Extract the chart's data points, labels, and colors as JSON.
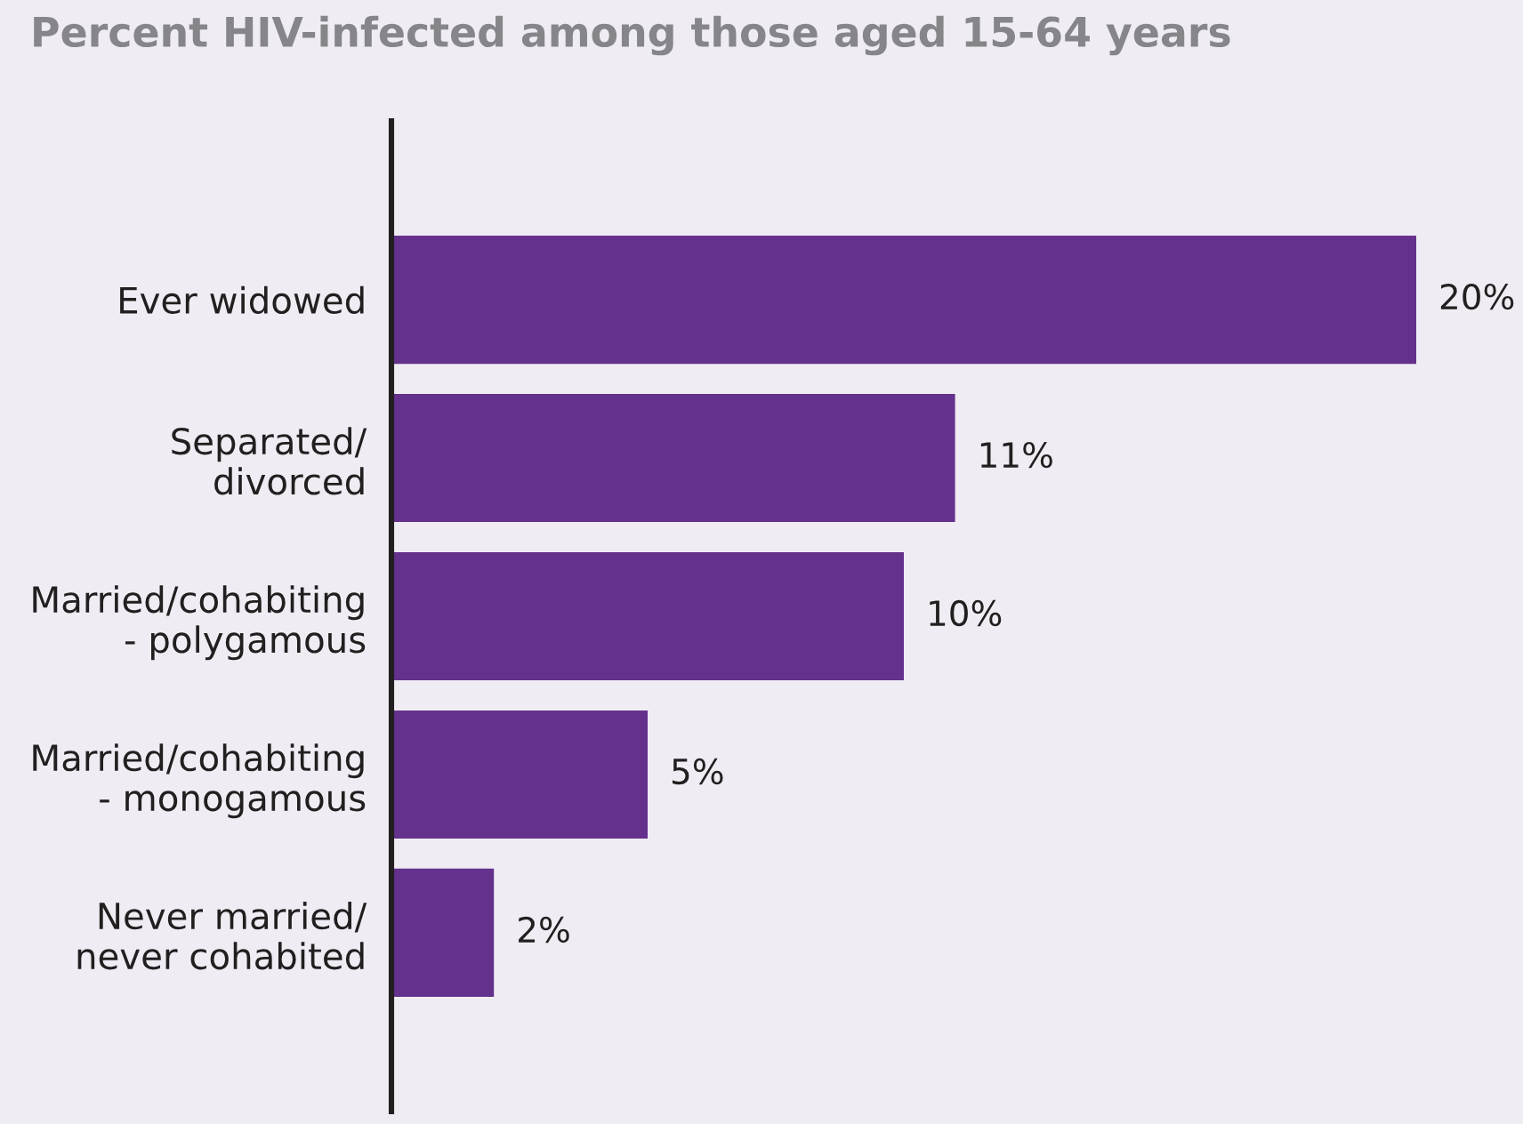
{
  "chart_data": {
    "type": "bar",
    "orientation": "horizontal",
    "title": "Percent HIV-infected among those aged 15-64 years",
    "categories": [
      "Ever widowed",
      "Separated/\ndivorced",
      "Married/cohabiting\n- polygamous",
      "Married/cohabiting\n- monogamous",
      "Never married/\nnever cohabited"
    ],
    "values": [
      20,
      11,
      10,
      5,
      2
    ],
    "color": "#64318c",
    "value_labels": [
      "20%",
      "11%",
      "10%",
      "5%",
      "2%"
    ],
    "grid": false,
    "legend": false
  }
}
